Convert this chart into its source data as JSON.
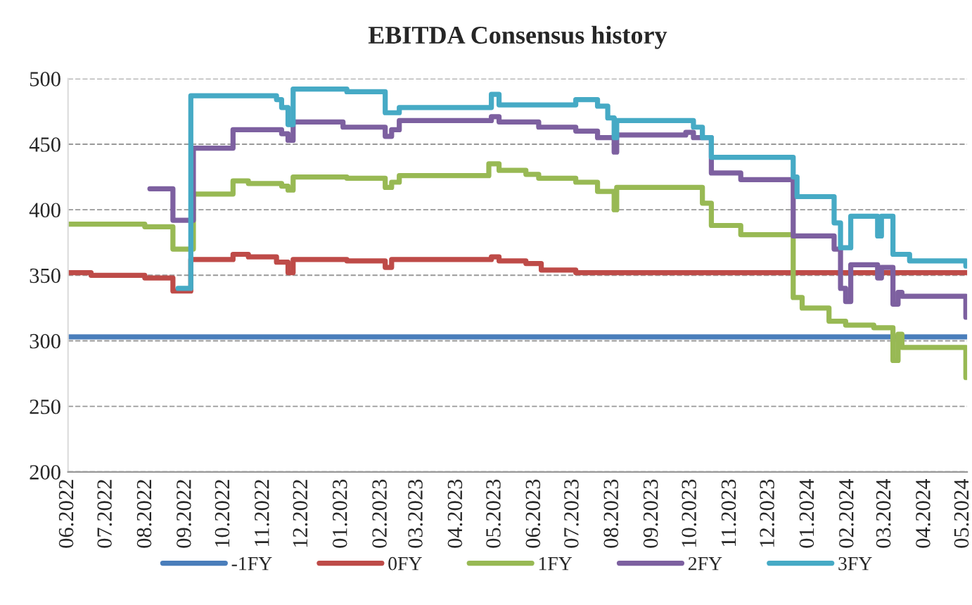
{
  "chart_data": {
    "type": "step",
    "title": "EBITDA Consensus history",
    "xlim": [
      "2022-06-01",
      "2024-05-04"
    ],
    "xticks": [
      {
        "value": "2022-06-01",
        "label": "06.2022"
      },
      {
        "value": "2022-07-01",
        "label": "07.2022"
      },
      {
        "value": "2022-08-01",
        "label": "08.2022"
      },
      {
        "value": "2022-09-01",
        "label": "09.2022"
      },
      {
        "value": "2022-10-01",
        "label": "10.2022"
      },
      {
        "value": "2022-11-01",
        "label": "11.2022"
      },
      {
        "value": "2022-12-01",
        "label": "12.2022"
      },
      {
        "value": "2023-01-01",
        "label": "01.2023"
      },
      {
        "value": "2023-02-01",
        "label": "02.2023"
      },
      {
        "value": "2023-03-01",
        "label": "03.2023"
      },
      {
        "value": "2023-04-01",
        "label": "04.2023"
      },
      {
        "value": "2023-05-01",
        "label": "05.2023"
      },
      {
        "value": "2023-06-01",
        "label": "06.2023"
      },
      {
        "value": "2023-07-01",
        "label": "07.2023"
      },
      {
        "value": "2023-08-01",
        "label": "08.2023"
      },
      {
        "value": "2023-09-01",
        "label": "09.2023"
      },
      {
        "value": "2023-10-01",
        "label": "10.2023"
      },
      {
        "value": "2023-11-01",
        "label": "11.2023"
      },
      {
        "value": "2023-12-01",
        "label": "12.2023"
      },
      {
        "value": "2024-01-01",
        "label": "01.2024"
      },
      {
        "value": "2024-02-01",
        "label": "02.2024"
      },
      {
        "value": "2024-03-01",
        "label": "03.2024"
      },
      {
        "value": "2024-04-01",
        "label": "04.2024"
      },
      {
        "value": "2024-05-01",
        "label": "05.2024"
      }
    ],
    "ylim": [
      200,
      500
    ],
    "yticks": [
      200,
      250,
      300,
      350,
      400,
      450,
      500
    ],
    "grid": "y",
    "legend": "bottom",
    "marker": "none",
    "line_style": "solid",
    "series": [
      {
        "name": "-1FY",
        "color": "#4a7ebb",
        "x": [
          "2022-06-01",
          "2024-05-04"
        ],
        "values": [
          303,
          303
        ]
      },
      {
        "name": "0FY",
        "color": "#be4b48",
        "x": [
          "2022-06-01",
          "2022-06-19",
          "2022-07-31",
          "2022-08-22",
          "2022-09-05",
          "2022-10-08",
          "2022-10-20",
          "2022-11-11",
          "2022-11-20",
          "2022-11-24",
          "2023-01-05",
          "2023-02-04",
          "2023-02-09",
          "2023-04-28",
          "2023-05-04",
          "2023-05-25",
          "2023-06-06",
          "2023-07-03",
          "2024-05-04"
        ],
        "values": [
          352,
          350,
          348,
          338,
          362,
          366,
          364,
          360,
          352,
          362,
          361,
          356,
          362,
          364,
          361,
          359,
          354,
          352,
          352
        ]
      },
      {
        "name": "1FY",
        "color": "#98b954",
        "x": [
          "2022-06-01",
          "2022-07-31",
          "2022-08-22",
          "2022-09-07",
          "2022-10-08",
          "2022-10-20",
          "2022-11-15",
          "2022-11-20",
          "2022-11-24",
          "2023-01-05",
          "2023-02-04",
          "2023-02-09",
          "2023-02-15",
          "2023-04-26",
          "2023-05-04",
          "2023-05-25",
          "2023-06-04",
          "2023-07-03",
          "2023-07-20",
          "2023-08-02",
          "2023-08-04",
          "2023-10-10",
          "2023-10-17",
          "2023-11-09",
          "2023-12-20",
          "2023-12-27",
          "2024-01-17",
          "2024-01-30",
          "2024-02-21",
          "2024-03-07",
          "2024-03-11",
          "2024-03-14",
          "2024-05-03",
          "2024-05-04"
        ],
        "values": [
          389,
          387,
          370,
          412,
          422,
          420,
          418,
          415,
          425,
          424,
          417,
          421,
          426,
          435,
          430,
          427,
          424,
          421,
          414,
          400,
          417,
          405,
          388,
          381,
          333,
          325,
          315,
          312,
          310,
          285,
          305,
          295,
          272,
          272
        ]
      },
      {
        "name": "2FY",
        "color": "#7d60a0",
        "x": [
          "2022-08-04",
          "2022-08-22",
          "2022-09-07",
          "2022-10-08",
          "2022-11-15",
          "2022-11-20",
          "2022-11-24",
          "2023-01-02",
          "2023-02-04",
          "2023-02-09",
          "2023-02-15",
          "2023-04-28",
          "2023-05-04",
          "2023-06-04",
          "2023-07-03",
          "2023-07-20",
          "2023-08-02",
          "2023-08-04",
          "2023-09-27",
          "2023-10-03",
          "2023-10-17",
          "2023-11-09",
          "2023-12-20",
          "2024-01-21",
          "2024-01-26",
          "2024-01-30",
          "2024-02-03",
          "2024-02-24",
          "2024-02-27",
          "2024-03-07",
          "2024-03-11",
          "2024-03-14",
          "2024-05-03",
          "2024-05-04"
        ],
        "values": [
          416,
          392,
          447,
          461,
          458,
          453,
          467,
          463,
          456,
          461,
          468,
          471,
          467,
          463,
          460,
          455,
          444,
          457,
          459,
          455,
          428,
          423,
          380,
          370,
          340,
          330,
          358,
          348,
          356,
          328,
          337,
          334,
          318,
          318
        ]
      },
      {
        "name": "3FY",
        "color": "#46aac5",
        "x": [
          "2022-08-26",
          "2022-09-05",
          "2022-11-11",
          "2022-11-15",
          "2022-11-20",
          "2022-11-24",
          "2023-01-05",
          "2023-02-04",
          "2023-02-15",
          "2023-04-28",
          "2023-05-04",
          "2023-07-03",
          "2023-07-20",
          "2023-07-28",
          "2023-08-02",
          "2023-08-04",
          "2023-10-03",
          "2023-10-10",
          "2023-10-17",
          "2023-12-20",
          "2023-12-23",
          "2024-01-21",
          "2024-01-26",
          "2024-02-03",
          "2024-02-24",
          "2024-02-27",
          "2024-03-07",
          "2024-03-20",
          "2024-05-03",
          "2024-05-04"
        ],
        "values": [
          340,
          487,
          484,
          478,
          465,
          492,
          490,
          474,
          478,
          488,
          480,
          484,
          479,
          470,
          455,
          468,
          463,
          455,
          440,
          425,
          410,
          390,
          371,
          395,
          380,
          395,
          366,
          361,
          357,
          357
        ]
      }
    ]
  }
}
